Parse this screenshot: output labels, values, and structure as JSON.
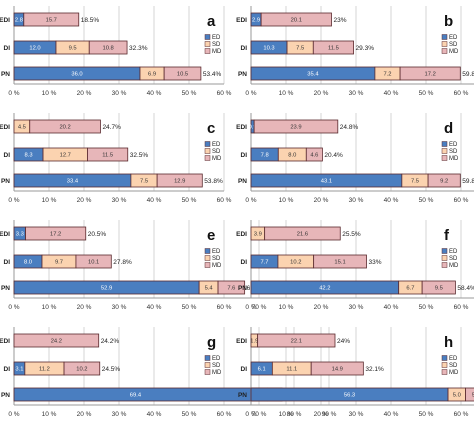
{
  "colors": {
    "ED": "#4a7ec0",
    "SD": "#fbd3b0",
    "MD": "#e7b6b9",
    "grid": "#d4d4d4",
    "axis": "#9a9a9a"
  },
  "legend": [
    "ED",
    "SD",
    "MD"
  ],
  "chart_data": [
    {
      "panel": "a",
      "type": "bar",
      "orientation": "horizontal",
      "stacked": true,
      "categories": [
        "EDI",
        "DI",
        "PN"
      ],
      "series": [
        {
          "name": "ED",
          "values": [
            2.8,
            12.0,
            36.0
          ]
        },
        {
          "name": "SD",
          "values": [
            0,
            9.5,
            6.9
          ]
        },
        {
          "name": "MD",
          "values": [
            15.7,
            10.8,
            10.5
          ]
        }
      ],
      "value_labels": [
        [
          "2.8",
          "",
          "15.7"
        ],
        [
          "12.0",
          "9.5",
          "10.8"
        ],
        [
          "36.0",
          "6.9",
          "10.5"
        ]
      ],
      "totals": [
        "18.5%",
        "32.3%",
        "53.4%"
      ],
      "xlim": [
        0,
        60
      ],
      "xticks": [
        "0 %",
        "10 %",
        "20 %",
        "30 %",
        "40 %",
        "50 %",
        "60 %"
      ]
    },
    {
      "panel": "b",
      "type": "bar",
      "orientation": "horizontal",
      "stacked": true,
      "categories": [
        "EDI",
        "DI",
        "PN"
      ],
      "series": [
        {
          "name": "ED",
          "values": [
            2.9,
            10.3,
            35.4
          ]
        },
        {
          "name": "SD",
          "values": [
            0,
            7.5,
            7.2
          ]
        },
        {
          "name": "MD",
          "values": [
            20.1,
            11.5,
            17.2
          ]
        }
      ],
      "value_labels": [
        [
          "2.9",
          "",
          "20.1"
        ],
        [
          "10.3",
          "7.5",
          "11.5"
        ],
        [
          "35.4",
          "7.2",
          "17.2"
        ]
      ],
      "totals": [
        "23%",
        "29.3%",
        "59.8%"
      ],
      "xlim": [
        0,
        70
      ],
      "xticks": [
        "0 %",
        "10 %",
        "20 %",
        "30 %",
        "40 %",
        "50 %",
        "60 %",
        "70 %"
      ]
    },
    {
      "panel": "c",
      "type": "bar",
      "orientation": "horizontal",
      "stacked": true,
      "categories": [
        "EDI",
        "DI",
        "PN"
      ],
      "series": [
        {
          "name": "ED",
          "values": [
            0,
            8.3,
            33.4
          ]
        },
        {
          "name": "SD",
          "values": [
            4.5,
            12.7,
            7.5
          ]
        },
        {
          "name": "MD",
          "values": [
            20.2,
            11.5,
            12.9
          ]
        }
      ],
      "value_labels": [
        [
          "",
          "4.5",
          "20.2"
        ],
        [
          "8.3",
          "12.7",
          "11.5"
        ],
        [
          "33.4",
          "7.5",
          "12.9"
        ]
      ],
      "totals": [
        "24.7%",
        "32.5%",
        "53.8%"
      ],
      "xlim": [
        0,
        60
      ],
      "xticks": [
        "0 %",
        "10 %",
        "20 %",
        "30 %",
        "40 %",
        "50 %",
        "60 %"
      ]
    },
    {
      "panel": "d",
      "type": "bar",
      "orientation": "horizontal",
      "stacked": true,
      "categories": [
        "EDI",
        "DI",
        "PN"
      ],
      "series": [
        {
          "name": "ED",
          "values": [
            0.9,
            7.8,
            43.1
          ]
        },
        {
          "name": "SD",
          "values": [
            0,
            8.0,
            7.5
          ]
        },
        {
          "name": "MD",
          "values": [
            23.9,
            4.6,
            9.2
          ]
        }
      ],
      "value_labels": [
        [
          "0.9",
          "",
          "23.9"
        ],
        [
          "7.8",
          "8.0",
          "4.6"
        ],
        [
          "43.1",
          "7.5",
          "9.2"
        ]
      ],
      "totals": [
        "24.8%",
        "20.4%",
        "59.8%"
      ],
      "xlim": [
        0,
        70
      ],
      "xticks": [
        "0 %",
        "10 %",
        "20 %",
        "30 %",
        "40 %",
        "50 %",
        "60 %",
        "70 %"
      ]
    },
    {
      "panel": "e",
      "type": "bar",
      "orientation": "horizontal",
      "stacked": true,
      "categories": [
        "EDI",
        "DI",
        "PN"
      ],
      "series": [
        {
          "name": "ED",
          "values": [
            3.3,
            8.0,
            52.9
          ]
        },
        {
          "name": "SD",
          "values": [
            0,
            9.7,
            5.4
          ]
        },
        {
          "name": "MD",
          "values": [
            17.2,
            10.1,
            7.6
          ]
        }
      ],
      "value_labels": [
        [
          "3.3",
          "",
          "17.2"
        ],
        [
          "8.0",
          "9.7",
          "10.1"
        ],
        [
          "52.9",
          "5.4",
          "7.6"
        ]
      ],
      "totals": [
        "20.5%",
        "27.8%",
        "65.9%"
      ],
      "xlim": [
        0,
        70
      ],
      "xticks": [
        "0 %",
        "10 %",
        "20 %",
        "30 %",
        "40 %",
        "50 %",
        "60 %",
        "70 %"
      ]
    },
    {
      "panel": "f",
      "type": "bar",
      "orientation": "horizontal",
      "stacked": true,
      "categories": [
        "EDI",
        "DI",
        "PN"
      ],
      "series": [
        {
          "name": "ED",
          "values": [
            0,
            7.7,
            42.2
          ]
        },
        {
          "name": "SD",
          "values": [
            3.9,
            10.2,
            6.7
          ]
        },
        {
          "name": "MD",
          "values": [
            21.6,
            15.1,
            9.5
          ]
        }
      ],
      "value_labels": [
        [
          "",
          "3.9",
          "21.6"
        ],
        [
          "7.7",
          "10.2",
          "15.1"
        ],
        [
          "42.2",
          "6.7",
          "9.5"
        ]
      ],
      "totals": [
        "25.5%",
        "33%",
        "58.4%"
      ],
      "xlim": [
        0,
        70
      ],
      "xticks": [
        "0 %",
        "10 %",
        "20 %",
        "30 %",
        "40 %",
        "50 %",
        "60 %",
        "70 %"
      ]
    },
    {
      "panel": "g",
      "type": "bar",
      "orientation": "horizontal",
      "stacked": true,
      "categories": [
        "EDI",
        "DI",
        "PN"
      ],
      "series": [
        {
          "name": "ED",
          "values": [
            0,
            3.1,
            69.4
          ]
        },
        {
          "name": "SD",
          "values": [
            0,
            11.2,
            3.0
          ]
        },
        {
          "name": "MD",
          "values": [
            24.2,
            10.2,
            4.2
          ]
        }
      ],
      "value_labels": [
        [
          "",
          "",
          "24.2"
        ],
        [
          "3.1",
          "11.2",
          "10.2"
        ],
        [
          "69.4",
          "3.0",
          "4.2"
        ]
      ],
      "totals": [
        "24.2%",
        "24.5%",
        "76.6%"
      ],
      "xlim": [
        0,
        90
      ],
      "xticks": [
        "0 %",
        "10 %",
        "20 %",
        "30 %",
        "40 %",
        "50 %",
        "60 %",
        "70 %",
        "80 %",
        "90 %"
      ]
    },
    {
      "panel": "h",
      "type": "bar",
      "orientation": "horizontal",
      "stacked": true,
      "categories": [
        "EDI",
        "DI",
        "PN"
      ],
      "series": [
        {
          "name": "ED",
          "values": [
            0,
            6.1,
            56.3
          ]
        },
        {
          "name": "SD",
          "values": [
            1.9,
            11.1,
            5.0
          ]
        },
        {
          "name": "MD",
          "values": [
            22.1,
            14.9,
            5.9
          ]
        }
      ],
      "value_labels": [
        [
          "",
          "1.9",
          "22.1"
        ],
        [
          "6.1",
          "11.1",
          "14.9"
        ],
        [
          "56.3",
          "5.0",
          "5.9"
        ]
      ],
      "totals": [
        "24%",
        "32.1%",
        "67.2%"
      ],
      "xlim": [
        0,
        80
      ],
      "xticks": [
        "0 %",
        "10 %",
        "20 %",
        "30 %",
        "40 %",
        "50 %",
        "60 %",
        "70 %",
        "80 %"
      ]
    }
  ]
}
